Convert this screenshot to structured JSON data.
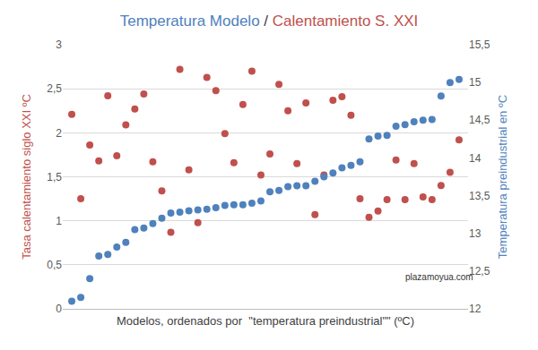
{
  "chart_data": {
    "type": "scatter",
    "title": "Temperatura Modelo / Calentamiento S. XXI",
    "xlabel": "Modelos, ordenados por  \"temperatura preindustrial\"\" (ºC)",
    "ylabel": "Tasa calentamiento siglo XXI ºC",
    "y2label": "Temperatura preindustrial en ºC",
    "x": [
      1,
      2,
      3,
      4,
      5,
      6,
      7,
      8,
      9,
      10,
      11,
      12,
      13,
      14,
      15,
      16,
      17,
      18,
      19,
      20,
      21,
      22,
      23,
      24,
      25,
      26,
      27,
      28,
      29,
      30,
      31,
      32,
      33,
      34,
      35,
      36,
      37,
      38,
      39,
      40,
      41,
      42,
      43,
      44
    ],
    "xlim": [
      0,
      45
    ],
    "ylim": [
      0,
      3
    ],
    "yticks": [
      0,
      {
        "value": 0.5,
        "label": "0,5"
      },
      1,
      {
        "value": 1.5,
        "label": "1,5"
      },
      2,
      {
        "value": 2.5,
        "label": "2,5"
      },
      3
    ],
    "y2lim": [
      12,
      15.5
    ],
    "y2ticks": [
      12,
      {
        "value": 12.5,
        "label": "12,5"
      },
      13,
      {
        "value": 13.5,
        "label": "13,5"
      },
      14,
      {
        "value": 14.5,
        "label": "14,5"
      },
      15,
      {
        "value": 15.5,
        "label": "15,5"
      }
    ],
    "grid": true,
    "tick_labels": "y",
    "series": [
      {
        "color": "#C0504D",
        "marker": "circle",
        "values": [
          2.21,
          1.25,
          1.86,
          1.68,
          2.42,
          1.74,
          2.09,
          2.27,
          2.44,
          1.67,
          1.34,
          0.87,
          2.72,
          1.58,
          0.98,
          2.63,
          2.48,
          1.99,
          1.66,
          2.32,
          2.7,
          1.52,
          1.76,
          2.55,
          2.25,
          1.65,
          2.34,
          1.07,
          1.52,
          2.37,
          2.41,
          2.2,
          1.25,
          1.04,
          1.11,
          1.24,
          1.69,
          1.24,
          1.65,
          1.27,
          1.24,
          1.4,
          1.55,
          1.92
        ]
      },
      {
        "color": "#4F81BD",
        "marker": "circle",
        "axis": "y2",
        "values": [
          12.1,
          12.15,
          12.4,
          12.7,
          12.72,
          12.82,
          12.88,
          13.05,
          13.07,
          13.13,
          13.2,
          13.27,
          13.28,
          13.3,
          13.31,
          13.32,
          13.34,
          13.37,
          13.38,
          13.38,
          13.4,
          13.43,
          13.55,
          13.57,
          13.62,
          13.63,
          13.63,
          13.69,
          13.75,
          13.8,
          13.87,
          13.9,
          13.95,
          14.25,
          14.29,
          14.3,
          14.42,
          14.44,
          14.48,
          14.5,
          14.51,
          14.82,
          15.0,
          15.04
        ]
      }
    ],
    "annotations": [
      "plazamoyua.com"
    ]
  }
}
